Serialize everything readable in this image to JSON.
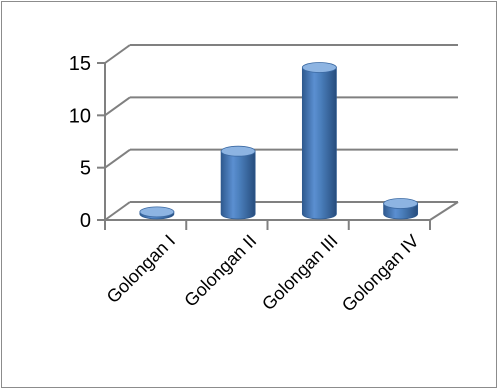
{
  "chart_data": {
    "type": "bar",
    "style": "3d-cylinder",
    "categories": [
      "Golongan I",
      "Golongan II",
      "Golongan III",
      "Golongan IV"
    ],
    "series": [
      {
        "values": [
          0.2,
          6,
          14,
          1
        ]
      }
    ],
    "yticks": [
      "0",
      "5",
      "10",
      "15"
    ],
    "ylim": [
      0,
      15
    ],
    "grid": true,
    "legend": "none",
    "colors": {
      "bar": "#4a7ebb",
      "bar_dark": "#2f5a8f",
      "bar_light": "#8db4e2",
      "grid": "#808080"
    }
  }
}
